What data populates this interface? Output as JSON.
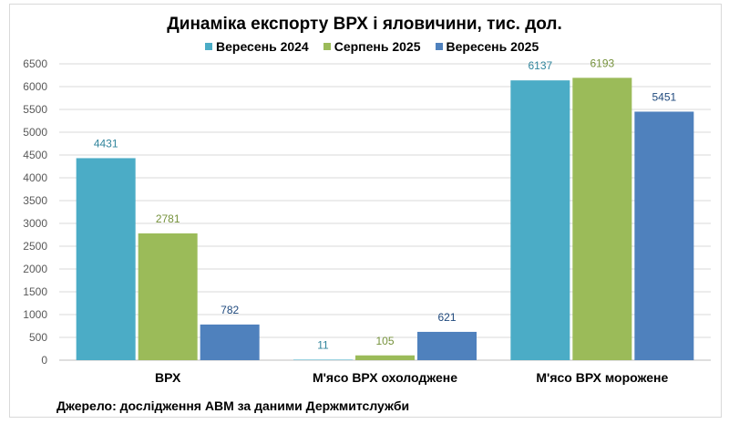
{
  "chart_data": {
    "type": "bar",
    "title": "Динаміка експорту ВРХ і яловичини, тис. дол.",
    "categories": [
      "ВРХ",
      "М'ясо ВРХ охолоджене",
      "М'ясо ВРХ морожене"
    ],
    "series": [
      {
        "name": "Вересень 2024",
        "values": [
          4431,
          11,
          6137
        ],
        "color": "#4bacc6",
        "label_color": "#31859c"
      },
      {
        "name": "Серпень 2025",
        "values": [
          2781,
          105,
          6193
        ],
        "color": "#9bbb59",
        "label_color": "#76923c"
      },
      {
        "name": "Вересень 2025",
        "values": [
          782,
          621,
          5451
        ],
        "color": "#4f81bd",
        "label_color": "#1f497d"
      }
    ],
    "ylim": [
      0,
      6500
    ],
    "yticks": [
      0,
      500,
      1000,
      1500,
      2000,
      2500,
      3000,
      3500,
      4000,
      4500,
      5000,
      5500,
      6000,
      6500
    ],
    "grid": true,
    "legend_position": "top",
    "source": "Джерело: дослідження АВМ за даними Держмитслужби"
  }
}
